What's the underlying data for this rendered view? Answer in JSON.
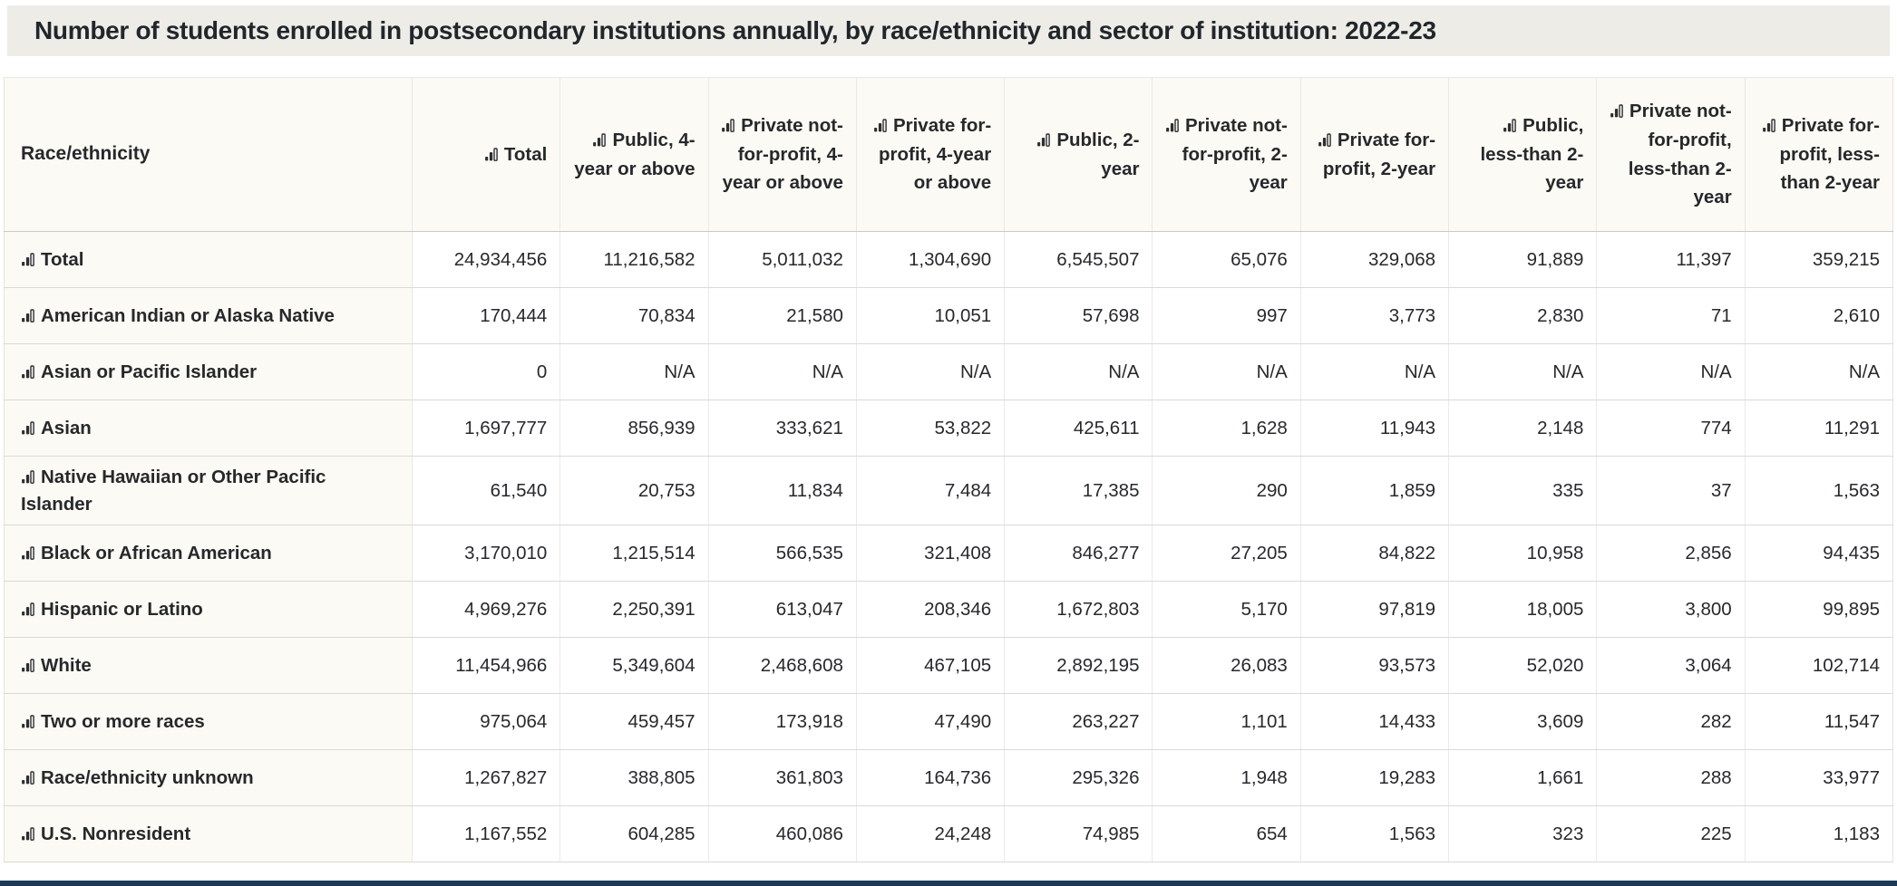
{
  "title": "Number of students enrolled in postsecondary institutions annually, by race/ethnicity and sector of institution: 2022-23",
  "icons": {
    "chart": "bar-chart-icon"
  },
  "colors": {
    "title_bar_bg": "#edece7",
    "header_bg": "#fbfaf4",
    "text": "#26282b",
    "bottom_bar": "#1c3a57"
  },
  "table": {
    "race_header": "Race/ethnicity",
    "columns": [
      "Total",
      "Public, 4-year or above",
      "Private not-for-profit, 4-year or above",
      "Private for-profit, 4-year or above",
      "Public, 2-year",
      "Private not-for-profit, 2-year",
      "Private for-profit, 2-year",
      "Public, less-than 2-year",
      "Private not-for-profit, less-than 2-year",
      "Private for-profit, less-than 2-year"
    ],
    "rows": [
      {
        "label": "Total",
        "values": [
          "24,934,456",
          "11,216,582",
          "5,011,032",
          "1,304,690",
          "6,545,507",
          "65,076",
          "329,068",
          "91,889",
          "11,397",
          "359,215"
        ]
      },
      {
        "label": "American Indian or Alaska Native",
        "values": [
          "170,444",
          "70,834",
          "21,580",
          "10,051",
          "57,698",
          "997",
          "3,773",
          "2,830",
          "71",
          "2,610"
        ]
      },
      {
        "label": "Asian or Pacific Islander",
        "values": [
          "0",
          "N/A",
          "N/A",
          "N/A",
          "N/A",
          "N/A",
          "N/A",
          "N/A",
          "N/A",
          "N/A"
        ]
      },
      {
        "label": "Asian",
        "values": [
          "1,697,777",
          "856,939",
          "333,621",
          "53,822",
          "425,611",
          "1,628",
          "11,943",
          "2,148",
          "774",
          "11,291"
        ]
      },
      {
        "label": "Native Hawaiian or Other Pacific Islander",
        "values": [
          "61,540",
          "20,753",
          "11,834",
          "7,484",
          "17,385",
          "290",
          "1,859",
          "335",
          "37",
          "1,563"
        ]
      },
      {
        "label": "Black or African American",
        "values": [
          "3,170,010",
          "1,215,514",
          "566,535",
          "321,408",
          "846,277",
          "27,205",
          "84,822",
          "10,958",
          "2,856",
          "94,435"
        ]
      },
      {
        "label": "Hispanic or Latino",
        "values": [
          "4,969,276",
          "2,250,391",
          "613,047",
          "208,346",
          "1,672,803",
          "5,170",
          "97,819",
          "18,005",
          "3,800",
          "99,895"
        ]
      },
      {
        "label": "White",
        "values": [
          "11,454,966",
          "5,349,604",
          "2,468,608",
          "467,105",
          "2,892,195",
          "26,083",
          "93,573",
          "52,020",
          "3,064",
          "102,714"
        ]
      },
      {
        "label": "Two or more races",
        "values": [
          "975,064",
          "459,457",
          "173,918",
          "47,490",
          "263,227",
          "1,101",
          "14,433",
          "3,609",
          "282",
          "11,547"
        ]
      },
      {
        "label": "Race/ethnicity unknown",
        "values": [
          "1,267,827",
          "388,805",
          "361,803",
          "164,736",
          "295,326",
          "1,948",
          "19,283",
          "1,661",
          "288",
          "33,977"
        ]
      },
      {
        "label": "U.S. Nonresident",
        "values": [
          "1,167,552",
          "604,285",
          "460,086",
          "24,248",
          "74,985",
          "654",
          "1,563",
          "323",
          "225",
          "1,183"
        ]
      }
    ]
  }
}
